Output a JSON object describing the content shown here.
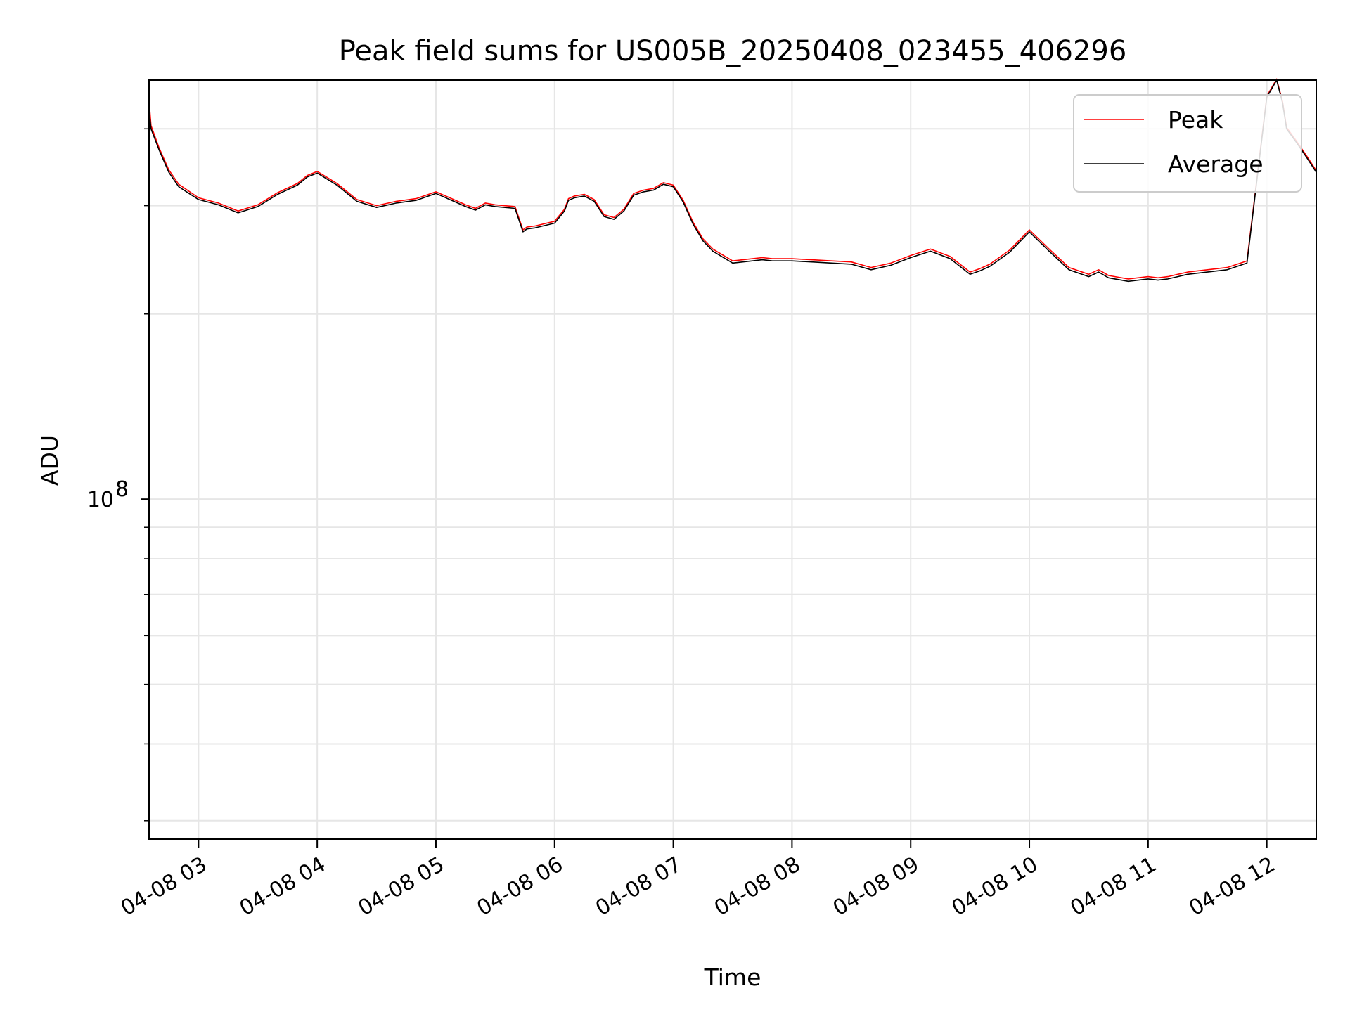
{
  "chart_data": {
    "type": "line",
    "title": "Peak field sums for US005B_20250408_023455_406296",
    "xlabel": "Time",
    "ylabel": "ADU",
    "y_scale": "log",
    "ylim": [
      28000000,
      480000000
    ],
    "xlim": [
      "2025-04-08 02:35",
      "2025-04-08 12:25"
    ],
    "x_ticks": [
      "04-08 03",
      "04-08 04",
      "04-08 05",
      "04-08 06",
      "04-08 07",
      "04-08 08",
      "04-08 09",
      "04-08 10",
      "04-08 11",
      "04-08 12"
    ],
    "y_ticks": [
      {
        "value": 100000000,
        "base": "10",
        "exp": "8"
      }
    ],
    "grid": true,
    "legend": "top-right",
    "series": [
      {
        "name": "Peak",
        "color": "#ff0000"
      },
      {
        "name": "Average",
        "color": "#000000"
      }
    ],
    "x": [
      "02:35",
      "02:36",
      "02:40",
      "02:45",
      "02:50",
      "03:00",
      "03:10",
      "03:20",
      "03:30",
      "03:40",
      "03:50",
      "03:55",
      "04:00",
      "04:10",
      "04:20",
      "04:30",
      "04:40",
      "04:50",
      "05:00",
      "05:10",
      "05:15",
      "05:20",
      "05:25",
      "05:30",
      "05:40",
      "05:44",
      "05:46",
      "05:50",
      "06:00",
      "06:05",
      "06:07",
      "06:10",
      "06:15",
      "06:20",
      "06:25",
      "06:30",
      "06:35",
      "06:40",
      "06:45",
      "06:50",
      "06:55",
      "07:00",
      "07:05",
      "07:10",
      "07:15",
      "07:20",
      "07:30",
      "07:40",
      "07:45",
      "07:50",
      "08:00",
      "08:10",
      "08:20",
      "08:30",
      "08:40",
      "08:50",
      "09:00",
      "09:10",
      "09:20",
      "09:30",
      "09:35",
      "09:40",
      "09:50",
      "10:00",
      "10:10",
      "10:20",
      "10:30",
      "10:35",
      "10:40",
      "10:50",
      "11:00",
      "11:05",
      "11:10",
      "11:15",
      "11:20",
      "11:30",
      "11:40",
      "11:50",
      "12:00",
      "12:05",
      "12:08",
      "12:10",
      "12:15",
      "12:20",
      "12:25"
    ],
    "average": [
      430000000,
      400000000,
      370000000,
      340000000,
      322000000,
      307000000,
      301000000,
      292000000,
      299000000,
      313000000,
      324000000,
      334000000,
      339000000,
      324000000,
      305000000,
      298000000,
      303000000,
      306000000,
      314000000,
      304000000,
      299000000,
      295000000,
      301000000,
      299000000,
      297000000,
      272000000,
      275000000,
      276000000,
      281000000,
      294000000,
      306000000,
      309000000,
      311000000,
      305000000,
      288000000,
      285000000,
      294000000,
      312000000,
      316000000,
      318000000,
      325000000,
      322000000,
      304000000,
      280000000,
      263000000,
      253000000,
      242000000,
      244000000,
      245000000,
      244000000,
      244000000,
      243000000,
      242000000,
      241000000,
      236000000,
      240000000,
      247000000,
      253000000,
      246000000,
      232000000,
      235000000,
      239000000,
      252000000,
      272000000,
      253000000,
      236000000,
      230000000,
      234000000,
      229000000,
      226000000,
      228000000,
      227000000,
      228000000,
      230000000,
      232000000,
      234000000,
      236000000,
      242000000,
      450000000,
      480000000,
      440000000,
      400000000,
      380000000,
      360000000,
      340000000
    ],
    "peak": [
      445000000,
      405000000,
      373000000,
      343000000,
      325000000,
      309000000,
      303000000,
      294000000,
      301000000,
      315000000,
      326000000,
      336000000,
      341000000,
      326000000,
      307000000,
      300000000,
      305000000,
      308000000,
      316000000,
      306000000,
      301000000,
      297000000,
      303000000,
      301000000,
      299000000,
      274000000,
      277000000,
      278000000,
      283000000,
      296000000,
      308000000,
      311000000,
      313000000,
      307000000,
      290000000,
      287000000,
      296000000,
      314000000,
      318000000,
      320000000,
      327000000,
      324000000,
      306000000,
      282000000,
      265000000,
      255000000,
      244000000,
      246000000,
      247000000,
      246000000,
      246000000,
      245000000,
      244000000,
      243000000,
      238000000,
      242000000,
      249000000,
      255000000,
      248000000,
      234000000,
      237000000,
      241000000,
      254000000,
      274000000,
      255000000,
      238000000,
      232000000,
      236000000,
      231000000,
      228000000,
      230000000,
      229000000,
      230000000,
      232000000,
      234000000,
      236000000,
      238000000,
      244000000,
      452000000,
      482000000,
      442000000,
      402000000,
      382000000,
      362000000,
      342000000
    ]
  }
}
